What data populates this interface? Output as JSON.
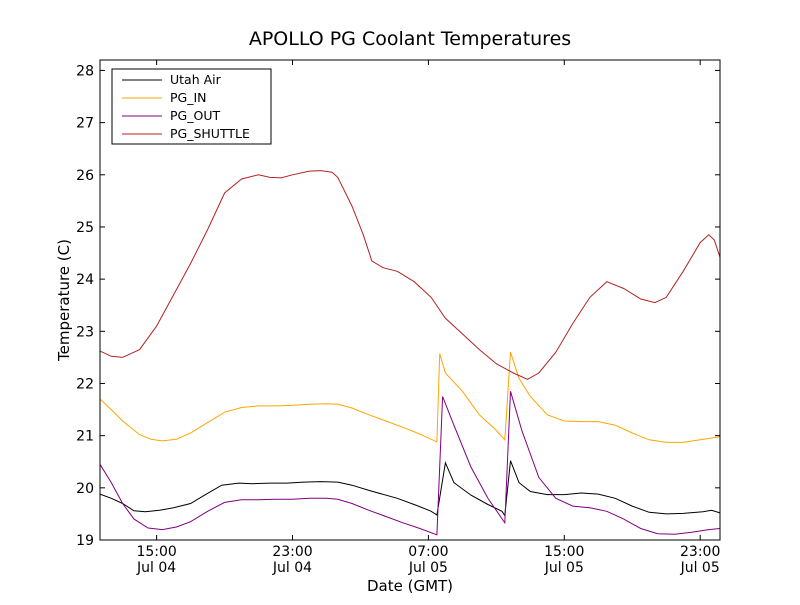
{
  "chart_data": {
    "type": "line",
    "title": "APOLLO PG Coolant Temperatures",
    "xlabel": "Date (GMT)",
    "ylabel": "Temperature (C)",
    "xlim": [
      "Jul 04 11:40",
      "Jul 06 00:10"
    ],
    "ylim": [
      19,
      28.2
    ],
    "yticks": [
      19,
      20,
      21,
      22,
      23,
      24,
      25,
      26,
      27,
      28
    ],
    "xticks": [
      {
        "t": "Jul 04 15:00",
        "time": "15:00",
        "day": "Jul 04"
      },
      {
        "t": "Jul 04 23:00",
        "time": "23:00",
        "day": "Jul 04"
      },
      {
        "t": "Jul 05 07:00",
        "time": "07:00",
        "day": "Jul 05"
      },
      {
        "t": "Jul 05 15:00",
        "time": "15:00",
        "day": "Jul 05"
      },
      {
        "t": "Jul 05 23:00",
        "time": "23:00",
        "day": "Jul 05"
      }
    ],
    "grid": false,
    "legend": {
      "placement": "top-left"
    },
    "series": [
      {
        "name": "Utah Air",
        "color": "#000000",
        "points": [
          [
            "Jul 04 11:40",
            19.88
          ],
          [
            "Jul 04 12:20",
            19.8
          ],
          [
            "Jul 04 13:00",
            19.7
          ],
          [
            "Jul 04 13:40",
            19.56
          ],
          [
            "Jul 04 14:20",
            19.54
          ],
          [
            "Jul 04 15:10",
            19.57
          ],
          [
            "Jul 04 16:00",
            19.62
          ],
          [
            "Jul 04 17:00",
            19.7
          ],
          [
            "Jul 04 17:50",
            19.86
          ],
          [
            "Jul 04 18:50",
            20.05
          ],
          [
            "Jul 04 19:50",
            20.09
          ],
          [
            "Jul 04 20:40",
            20.08
          ],
          [
            "Jul 04 21:40",
            20.09
          ],
          [
            "Jul 04 22:40",
            20.09
          ],
          [
            "Jul 04 23:40",
            20.11
          ],
          [
            "Jul 05 00:40",
            20.12
          ],
          [
            "Jul 05 01:40",
            20.11
          ],
          [
            "Jul 05 02:30",
            20.05
          ],
          [
            "Jul 05 03:30",
            19.95
          ],
          [
            "Jul 05 05:10",
            19.8
          ],
          [
            "Jul 05 06:20",
            19.66
          ],
          [
            "Jul 05 07:10",
            19.55
          ],
          [
            "Jul 05 07:30",
            19.48
          ],
          [
            "Jul 05 08:00",
            20.48
          ],
          [
            "Jul 05 08:30",
            20.1
          ],
          [
            "Jul 05 09:30",
            19.86
          ],
          [
            "Jul 05 10:30",
            19.68
          ],
          [
            "Jul 05 11:20",
            19.55
          ],
          [
            "Jul 05 11:30",
            19.47
          ],
          [
            "Jul 05 11:50",
            20.52
          ],
          [
            "Jul 05 12:20",
            20.1
          ],
          [
            "Jul 05 13:00",
            19.93
          ],
          [
            "Jul 05 14:00",
            19.87
          ],
          [
            "Jul 05 15:00",
            19.87
          ],
          [
            "Jul 05 16:00",
            19.9
          ],
          [
            "Jul 05 17:00",
            19.88
          ],
          [
            "Jul 05 18:00",
            19.8
          ],
          [
            "Jul 05 19:00",
            19.65
          ],
          [
            "Jul 05 20:00",
            19.53
          ],
          [
            "Jul 05 21:00",
            19.5
          ],
          [
            "Jul 05 22:00",
            19.51
          ],
          [
            "Jul 05 23:10",
            19.54
          ],
          [
            "Jul 05 23:40",
            19.57
          ],
          [
            "Jul 06 00:10",
            19.52
          ]
        ]
      },
      {
        "name": "PG_IN",
        "color": "#ffa500",
        "points": [
          [
            "Jul 04 11:40",
            21.7
          ],
          [
            "Jul 04 12:20",
            21.5
          ],
          [
            "Jul 04 13:00",
            21.28
          ],
          [
            "Jul 04 14:00",
            21.02
          ],
          [
            "Jul 04 14:40",
            20.93
          ],
          [
            "Jul 04 15:20",
            20.9
          ],
          [
            "Jul 04 16:10",
            20.93
          ],
          [
            "Jul 04 17:00",
            21.05
          ],
          [
            "Jul 04 18:00",
            21.25
          ],
          [
            "Jul 04 19:00",
            21.45
          ],
          [
            "Jul 04 20:00",
            21.54
          ],
          [
            "Jul 04 21:00",
            21.57
          ],
          [
            "Jul 04 22:00",
            21.57
          ],
          [
            "Jul 04 23:00",
            21.58
          ],
          [
            "Jul 05 00:00",
            21.6
          ],
          [
            "Jul 05 01:00",
            21.61
          ],
          [
            "Jul 05 01:40",
            21.6
          ],
          [
            "Jul 05 02:30",
            21.53
          ],
          [
            "Jul 05 03:30",
            21.4
          ],
          [
            "Jul 05 04:30",
            21.28
          ],
          [
            "Jul 05 05:30",
            21.16
          ],
          [
            "Jul 05 06:30",
            21.03
          ],
          [
            "Jul 05 07:30",
            20.88
          ],
          [
            "Jul 05 07:40",
            22.57
          ],
          [
            "Jul 05 08:00",
            22.2
          ],
          [
            "Jul 05 09:00",
            21.85
          ],
          [
            "Jul 05 10:00",
            21.4
          ],
          [
            "Jul 05 11:00",
            21.1
          ],
          [
            "Jul 05 11:30",
            20.92
          ],
          [
            "Jul 05 11:50",
            22.6
          ],
          [
            "Jul 05 12:20",
            22.1
          ],
          [
            "Jul 05 13:00",
            21.75
          ],
          [
            "Jul 05 14:00",
            21.4
          ],
          [
            "Jul 05 15:00",
            21.28
          ],
          [
            "Jul 05 16:00",
            21.27
          ],
          [
            "Jul 05 17:00",
            21.27
          ],
          [
            "Jul 05 18:00",
            21.2
          ],
          [
            "Jul 05 19:00",
            21.05
          ],
          [
            "Jul 05 20:00",
            20.92
          ],
          [
            "Jul 05 21:00",
            20.87
          ],
          [
            "Jul 05 22:00",
            20.87
          ],
          [
            "Jul 05 23:00",
            20.92
          ],
          [
            "Jul 06 00:10",
            20.98
          ]
        ]
      },
      {
        "name": "PG_OUT",
        "color": "#800080",
        "points": [
          [
            "Jul 04 11:40",
            20.45
          ],
          [
            "Jul 04 12:20",
            20.1
          ],
          [
            "Jul 04 13:00",
            19.7
          ],
          [
            "Jul 04 13:40",
            19.4
          ],
          [
            "Jul 04 14:30",
            19.23
          ],
          [
            "Jul 04 15:20",
            19.2
          ],
          [
            "Jul 04 16:10",
            19.25
          ],
          [
            "Jul 04 17:00",
            19.35
          ],
          [
            "Jul 04 18:00",
            19.55
          ],
          [
            "Jul 04 19:00",
            19.72
          ],
          [
            "Jul 04 20:00",
            19.77
          ],
          [
            "Jul 04 21:00",
            19.77
          ],
          [
            "Jul 04 22:00",
            19.78
          ],
          [
            "Jul 04 23:00",
            19.78
          ],
          [
            "Jul 05 00:00",
            19.8
          ],
          [
            "Jul 05 01:00",
            19.8
          ],
          [
            "Jul 05 01:40",
            19.78
          ],
          [
            "Jul 05 02:30",
            19.7
          ],
          [
            "Jul 05 03:30",
            19.57
          ],
          [
            "Jul 05 04:30",
            19.45
          ],
          [
            "Jul 05 05:30",
            19.33
          ],
          [
            "Jul 05 06:30",
            19.22
          ],
          [
            "Jul 05 07:30",
            19.1
          ],
          [
            "Jul 05 07:50",
            21.75
          ],
          [
            "Jul 05 08:30",
            21.2
          ],
          [
            "Jul 05 09:30",
            20.4
          ],
          [
            "Jul 05 10:30",
            19.8
          ],
          [
            "Jul 05 11:30",
            19.33
          ],
          [
            "Jul 05 11:50",
            21.85
          ],
          [
            "Jul 05 12:30",
            21.1
          ],
          [
            "Jul 05 13:30",
            20.2
          ],
          [
            "Jul 05 14:30",
            19.8
          ],
          [
            "Jul 05 15:30",
            19.65
          ],
          [
            "Jul 05 16:30",
            19.62
          ],
          [
            "Jul 05 17:30",
            19.55
          ],
          [
            "Jul 05 18:30",
            19.4
          ],
          [
            "Jul 05 19:30",
            19.22
          ],
          [
            "Jul 05 20:30",
            19.12
          ],
          [
            "Jul 05 21:30",
            19.11
          ],
          [
            "Jul 05 22:30",
            19.15
          ],
          [
            "Jul 05 23:30",
            19.2
          ],
          [
            "Jul 06 00:10",
            19.22
          ]
        ]
      },
      {
        "name": "PG_SHUTTLE",
        "color": "#b22222",
        "points": [
          [
            "Jul 04 11:40",
            22.62
          ],
          [
            "Jul 04 12:20",
            22.52
          ],
          [
            "Jul 04 13:00",
            22.5
          ],
          [
            "Jul 04 14:00",
            22.65
          ],
          [
            "Jul 04 15:00",
            23.1
          ],
          [
            "Jul 04 16:00",
            23.7
          ],
          [
            "Jul 04 17:00",
            24.3
          ],
          [
            "Jul 04 18:00",
            24.95
          ],
          [
            "Jul 04 19:00",
            25.65
          ],
          [
            "Jul 04 20:00",
            25.92
          ],
          [
            "Jul 04 21:00",
            26.0
          ],
          [
            "Jul 04 21:40",
            25.95
          ],
          [
            "Jul 04 22:20",
            25.94
          ],
          [
            "Jul 04 23:00",
            26.0
          ],
          [
            "Jul 05 00:00",
            26.07
          ],
          [
            "Jul 05 00:40",
            26.08
          ],
          [
            "Jul 05 01:20",
            26.05
          ],
          [
            "Jul 05 01:40",
            25.95
          ],
          [
            "Jul 05 02:30",
            25.4
          ],
          [
            "Jul 05 03:10",
            24.85
          ],
          [
            "Jul 05 03:40",
            24.35
          ],
          [
            "Jul 05 04:20",
            24.22
          ],
          [
            "Jul 05 05:10",
            24.15
          ],
          [
            "Jul 05 06:10",
            23.95
          ],
          [
            "Jul 05 07:10",
            23.65
          ],
          [
            "Jul 05 08:00",
            23.25
          ],
          [
            "Jul 05 09:00",
            22.95
          ],
          [
            "Jul 05 10:00",
            22.65
          ],
          [
            "Jul 05 11:00",
            22.38
          ],
          [
            "Jul 05 12:00",
            22.2
          ],
          [
            "Jul 05 12:50",
            22.08
          ],
          [
            "Jul 05 13:30",
            22.2
          ],
          [
            "Jul 05 14:30",
            22.6
          ],
          [
            "Jul 05 15:30",
            23.15
          ],
          [
            "Jul 05 16:30",
            23.65
          ],
          [
            "Jul 05 17:30",
            23.95
          ],
          [
            "Jul 05 18:30",
            23.82
          ],
          [
            "Jul 05 19:30",
            23.62
          ],
          [
            "Jul 05 20:20",
            23.55
          ],
          [
            "Jul 05 21:00",
            23.65
          ],
          [
            "Jul 05 22:00",
            24.15
          ],
          [
            "Jul 05 23:00",
            24.7
          ],
          [
            "Jul 05 23:30",
            24.85
          ],
          [
            "Jul 05 23:50",
            24.75
          ],
          [
            "Jul 06 00:10",
            24.42
          ]
        ]
      }
    ]
  }
}
